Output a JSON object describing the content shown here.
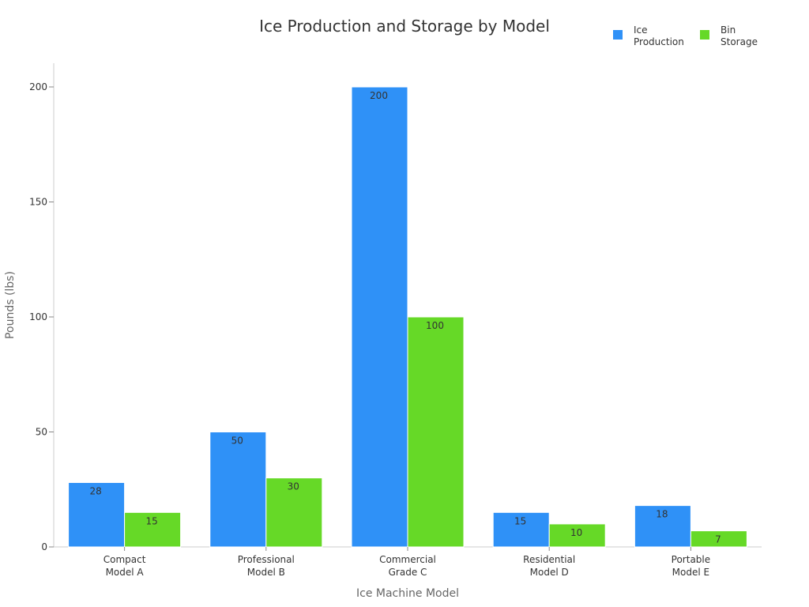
{
  "chart_data": {
    "type": "bar",
    "title": "Ice Production and Storage by Model",
    "xlabel": "Ice Machine Model",
    "ylabel": "Pounds (lbs)",
    "ylim": [
      0,
      210
    ],
    "yticks": [
      0,
      50,
      100,
      150,
      200
    ],
    "grid": false,
    "legend_position": "top-right",
    "categories": [
      [
        "Compact",
        "Model A"
      ],
      [
        "Professional",
        "Model B"
      ],
      [
        "Commercial",
        "Grade C"
      ],
      [
        "Residential",
        "Model D"
      ],
      [
        "Portable",
        "Model E"
      ]
    ],
    "series": [
      {
        "name": [
          "Ice",
          "Production"
        ],
        "color": "#2f91f7",
        "values": [
          28,
          50,
          200,
          15,
          18
        ]
      },
      {
        "name": [
          "Bin",
          "Storage"
        ],
        "color": "#66d927",
        "values": [
          15,
          30,
          100,
          10,
          7
        ]
      }
    ]
  }
}
